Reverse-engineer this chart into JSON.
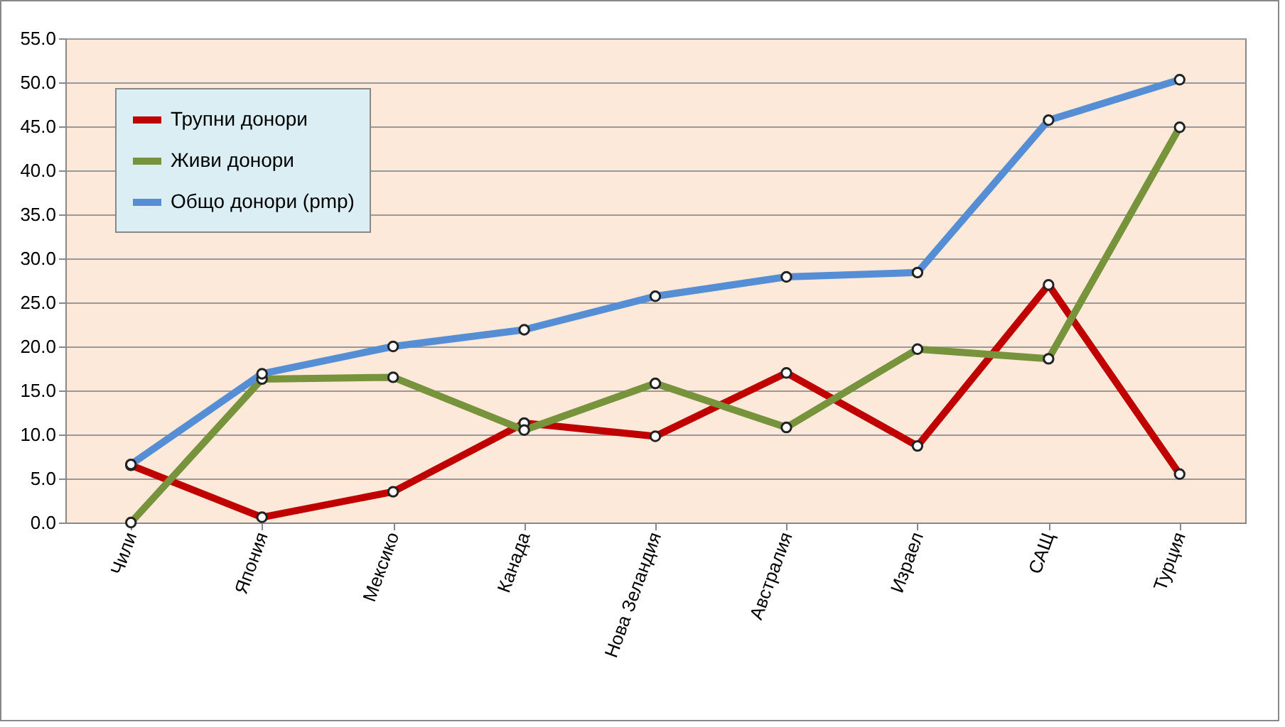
{
  "chart_data": {
    "type": "line",
    "categories": [
      "Чили",
      "Япония",
      "Мексико",
      "Канада",
      "Нова Зеландия",
      "Австралия",
      "Израел",
      "САЩ",
      "Турция"
    ],
    "series": [
      {
        "name": "Трупни донори",
        "color": "#c00000",
        "values": [
          6.5,
          0.6,
          3.5,
          11.3,
          9.8,
          17.0,
          8.7,
          27.0,
          5.5
        ]
      },
      {
        "name": "Живи донори",
        "color": "#77933c",
        "values": [
          0.0,
          16.3,
          16.5,
          10.5,
          15.8,
          10.8,
          19.7,
          18.6,
          44.9
        ]
      },
      {
        "name": "Общо донори (pmp)",
        "color": "#558ed5",
        "values": [
          6.6,
          16.9,
          20.0,
          21.9,
          25.7,
          27.9,
          28.4,
          45.7,
          50.3
        ]
      }
    ],
    "ylim": [
      0,
      55
    ],
    "yticks": [
      {
        "value": 0,
        "label": "0.0"
      },
      {
        "value": 5,
        "label": "5.0"
      },
      {
        "value": 10,
        "label": "10.0"
      },
      {
        "value": 15,
        "label": "15.0"
      },
      {
        "value": 20,
        "label": "20.0"
      },
      {
        "value": 25,
        "label": "25.0"
      },
      {
        "value": 30,
        "label": "30.0"
      },
      {
        "value": 35,
        "label": "35.0"
      },
      {
        "value": 40,
        "label": "40.0"
      },
      {
        "value": 45,
        "label": "45.0"
      },
      {
        "value": 50,
        "label": "50.0"
      },
      {
        "value": 55,
        "label": "55.0"
      }
    ],
    "grid": "y",
    "legend": "top left",
    "marker": "circle",
    "line_style": "solid"
  }
}
